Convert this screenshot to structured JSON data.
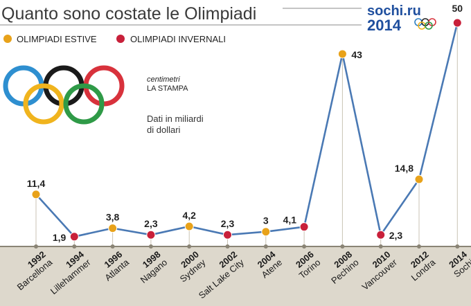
{
  "header": {
    "title": "Quanto sono costate le Olimpiadi"
  },
  "logo": {
    "text_top": "sochi.ru",
    "text_bottom": "2014"
  },
  "legend": {
    "summer": {
      "label": "OLIMPIADI ESTIVE",
      "color": "#e8a21a"
    },
    "winter": {
      "label": "OLIMPIADI INVERNALI",
      "color": "#c8203a"
    }
  },
  "source": {
    "brand": "centimetri",
    "publisher": "LA STAMPA"
  },
  "note": {
    "line1": "Dati in miliardi",
    "line2": "di dollari"
  },
  "chart_data": {
    "type": "line",
    "ylabel": "",
    "xlabel": "",
    "line_color": "#4a79b4",
    "unit_note": "Dati in miliardi di dollari",
    "categories": [
      "1992",
      "1994",
      "1996",
      "1998",
      "2000",
      "2002",
      "2004",
      "2006",
      "2008",
      "2010",
      "2012",
      "2014"
    ],
    "cities": [
      "Barcellona",
      "Lillehammer",
      "Atlanta",
      "Nagano",
      "Sydney",
      "Salt Lake City",
      "Atene",
      "Torino",
      "Pechino",
      "Vancouver",
      "Londra",
      "Sochi"
    ],
    "season": [
      "summer",
      "winter",
      "summer",
      "winter",
      "summer",
      "winter",
      "summer",
      "winter",
      "summer",
      "winter",
      "summer",
      "winter"
    ],
    "values": [
      11.4,
      1.9,
      3.8,
      2.3,
      4.2,
      2.3,
      3,
      4.1,
      43,
      2.3,
      14.8,
      50
    ],
    "value_labels": [
      "11,4",
      "1,9",
      "3,8",
      "2,3",
      "4,2",
      "2,3",
      "3",
      "4,1",
      "43",
      "2,3",
      "14,8",
      "50"
    ],
    "ylim": [
      0,
      50
    ]
  }
}
